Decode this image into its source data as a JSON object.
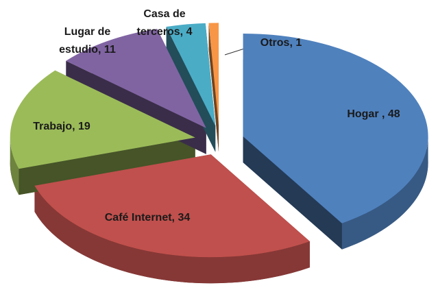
{
  "chart_data": {
    "type": "pie3d",
    "categories": [
      "Hogar",
      "Café Internet",
      "Trabajo",
      "Lugar de estudio",
      "Casa de terceros",
      "Otros"
    ],
    "values": [
      48,
      34,
      19,
      11,
      4,
      1
    ],
    "value_labels": [
      " , 48",
      ", 34",
      ", 19",
      ", 11",
      ", 4",
      ", 1"
    ],
    "colors": [
      "#4f81bd",
      "#c0504d",
      "#9bbb59",
      "#8064a2",
      "#4bacc6",
      "#f79646"
    ]
  }
}
